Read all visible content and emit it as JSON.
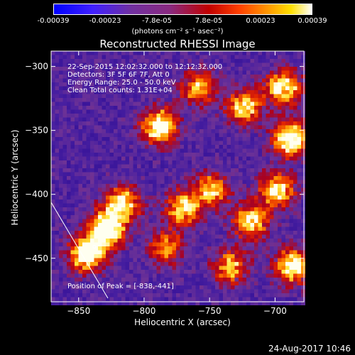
{
  "colorbar": {
    "ticks": [
      "-0.00039",
      "-0.00023",
      "-7.8e-05",
      "7.8e-05",
      "0.00023",
      "0.00039"
    ],
    "units": "(photons cm⁻² s⁻¹ asec⁻²)",
    "min": -0.00039,
    "max": 0.00039
  },
  "chart_data": {
    "type": "heatmap",
    "title": "Reconstructed RHESSI Image",
    "xlabel": "Heliocentric X (arcsec)",
    "ylabel": "Heliocentric Y (arcsec)",
    "xlim": [
      -871,
      -678
    ],
    "ylim": [
      -484,
      -288
    ],
    "xticks": [
      -850,
      -800,
      -750,
      -700
    ],
    "yticks": [
      -300,
      -350,
      -400,
      -450
    ],
    "annotations": [
      "22-Sep-2015 12:02:32.000 to 12:12:32.000",
      "Detectors: 3F 5F 6F 7F, Att 0",
      "Energy Range: 25.0 - 50.0 keV",
      "Clean    Total counts: 1.31E+04"
    ],
    "peak_label": "Position of Peak = [-838,-441]",
    "peak": [
      -838,
      -441
    ],
    "hot_regions": [
      {
        "x": -830,
        "y": -425,
        "intensity": 1.0
      },
      {
        "x": -845,
        "y": -445,
        "intensity": 0.95
      },
      {
        "x": -818,
        "y": -405,
        "intensity": 0.7
      },
      {
        "x": -790,
        "y": -345,
        "intensity": 0.85
      },
      {
        "x": -760,
        "y": -315,
        "intensity": 0.6
      },
      {
        "x": -725,
        "y": -330,
        "intensity": 0.75
      },
      {
        "x": -695,
        "y": -315,
        "intensity": 0.8
      },
      {
        "x": -690,
        "y": -355,
        "intensity": 0.9
      },
      {
        "x": -700,
        "y": -395,
        "intensity": 0.75
      },
      {
        "x": -720,
        "y": -420,
        "intensity": 0.7
      },
      {
        "x": -750,
        "y": -395,
        "intensity": 0.65
      },
      {
        "x": -772,
        "y": -410,
        "intensity": 0.7
      },
      {
        "x": -785,
        "y": -440,
        "intensity": 0.55
      },
      {
        "x": -688,
        "y": -455,
        "intensity": 0.85
      },
      {
        "x": -735,
        "y": -455,
        "intensity": 0.6
      }
    ],
    "grid": false
  },
  "footer": {
    "timestamp": "24-Aug-2017 10:46"
  }
}
